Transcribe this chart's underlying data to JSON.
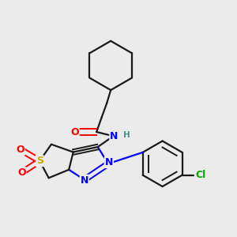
{
  "bg_color": "#ebebeb",
  "bond_color": "#1a1a1a",
  "atom_colors": {
    "O": "#ff0000",
    "N": "#0000ff",
    "S": "#ccaa00",
    "Cl": "#00aa00",
    "H": "#4a9090",
    "C": "#1a1a1a"
  },
  "figsize": [
    3.0,
    3.0
  ],
  "dpi": 100
}
